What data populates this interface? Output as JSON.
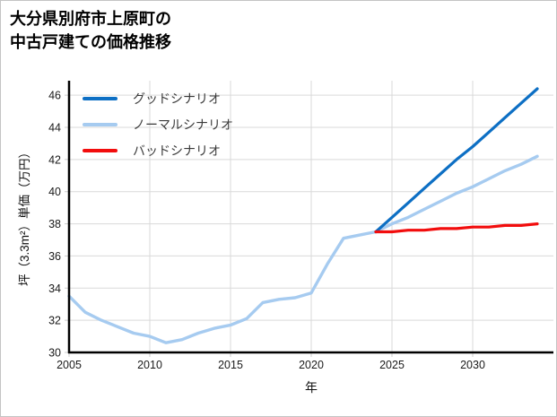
{
  "title": {
    "line1": "大分県別府市上原町の",
    "line2": "中古戸建ての価格推移"
  },
  "chart_data": {
    "type": "line",
    "title": "大分県別府市上原町の中古戸建ての価格推移",
    "xlabel": "年",
    "ylabel": "坪（3.3m²）単価（万円）",
    "xlim": [
      2005,
      2035
    ],
    "ylim": [
      30,
      46.9
    ],
    "xticks": [
      2005,
      2010,
      2015,
      2020,
      2025,
      2030
    ],
    "yticks": [
      30,
      32,
      34,
      36,
      38,
      40,
      42,
      44,
      46
    ],
    "grid": true,
    "legend_position": "upper left",
    "series": [
      {
        "id": "normal-scenario",
        "name": "ノーマルシナリオ",
        "color": "#a6cbf0",
        "width": 3.4,
        "x": [
          2005,
          2006,
          2007,
          2008,
          2009,
          2010,
          2011,
          2012,
          2013,
          2014,
          2015,
          2016,
          2017,
          2018,
          2019,
          2020,
          2021,
          2022,
          2023,
          2024,
          2025,
          2026,
          2027,
          2028,
          2029,
          2030,
          2031,
          2032,
          2033,
          2034
        ],
        "values": [
          33.5,
          32.5,
          32.0,
          31.6,
          31.2,
          31.0,
          30.6,
          30.8,
          31.2,
          31.5,
          31.7,
          32.1,
          33.1,
          33.3,
          33.4,
          33.7,
          35.5,
          37.1,
          37.3,
          37.5,
          38.0,
          38.4,
          38.9,
          39.4,
          39.9,
          40.3,
          40.8,
          41.3,
          41.7,
          42.2
        ]
      },
      {
        "id": "good-scenario",
        "name": "グッドシナリオ",
        "color": "#0d6fc4",
        "width": 3.2,
        "x": [
          2024,
          2025,
          2026,
          2027,
          2028,
          2029,
          2030,
          2031,
          2032,
          2033,
          2034
        ],
        "values": [
          37.5,
          38.4,
          39.3,
          40.2,
          41.1,
          42.0,
          42.8,
          43.7,
          44.6,
          45.5,
          46.4
        ]
      },
      {
        "id": "bad-scenario",
        "name": "バッドシナリオ",
        "color": "#f20d0d",
        "width": 3.2,
        "x": [
          2024,
          2025,
          2026,
          2027,
          2028,
          2029,
          2030,
          2031,
          2032,
          2033,
          2034
        ],
        "values": [
          37.5,
          37.5,
          37.6,
          37.6,
          37.7,
          37.7,
          37.8,
          37.8,
          37.9,
          37.9,
          38.0
        ]
      }
    ],
    "colors": {
      "grid": "#d9d9d9",
      "tick": "#cccccc",
      "spine": "#000000",
      "tick_label": "#1a1a1a"
    }
  },
  "legend": {
    "items": [
      {
        "label": "グッドシナリオ",
        "series": "good-scenario"
      },
      {
        "label": "ノーマルシナリオ",
        "series": "normal-scenario"
      },
      {
        "label": "バッドシナリオ",
        "series": "bad-scenario"
      }
    ]
  }
}
